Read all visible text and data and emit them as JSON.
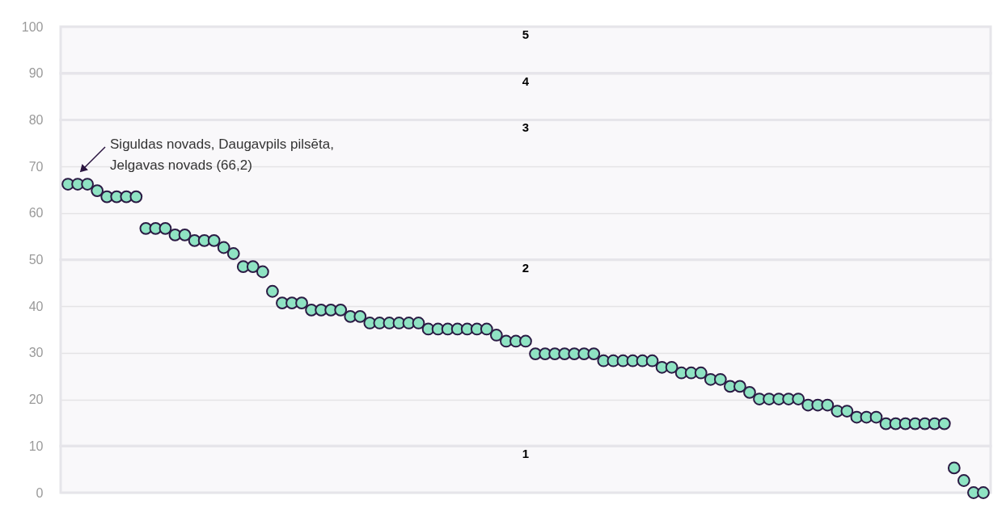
{
  "chart_data": {
    "type": "scatter",
    "categories": [
      null,
      null,
      null,
      null,
      null,
      null,
      null,
      null,
      null,
      null,
      null,
      null,
      null,
      null,
      null,
      null,
      null,
      null,
      null,
      null,
      null,
      null,
      null,
      null,
      null,
      null,
      null,
      null,
      null,
      null,
      null,
      null,
      null,
      null,
      null,
      null,
      null,
      null,
      null,
      null,
      null,
      null,
      null,
      null,
      null,
      null,
      null,
      null,
      null,
      null,
      null,
      null,
      null,
      null,
      null,
      null,
      null,
      null,
      null,
      null,
      null,
      null,
      null,
      null,
      null,
      null,
      null,
      null,
      null,
      null,
      null,
      null,
      null,
      null,
      null,
      null,
      null,
      null,
      null,
      null,
      null,
      null,
      null,
      null,
      null,
      null,
      null,
      null,
      null,
      null,
      null,
      null,
      null,
      null,
      null
    ],
    "series": [
      {
        "color": "#8fe3c3",
        "values": [
          66.2,
          66.2,
          66.2,
          64.8,
          63.5,
          63.5,
          63.5,
          63.5,
          56.7,
          56.7,
          56.7,
          55.3,
          55.3,
          54.1,
          54.1,
          54.1,
          52.6,
          51.3,
          48.5,
          48.5,
          47.4,
          43.2,
          40.7,
          40.7,
          40.7,
          39.2,
          39.2,
          39.2,
          39.2,
          37.8,
          37.8,
          36.4,
          36.4,
          36.4,
          36.4,
          36.4,
          36.4,
          35.1,
          35.1,
          35.1,
          35.1,
          35.1,
          35.1,
          35.1,
          33.8,
          32.5,
          32.5,
          32.5,
          29.8,
          29.8,
          29.8,
          29.8,
          29.8,
          29.8,
          29.8,
          28.3,
          28.3,
          28.3,
          28.3,
          28.3,
          28.3,
          26.9,
          26.9,
          25.7,
          25.7,
          25.7,
          24.3,
          24.3,
          22.8,
          22.8,
          21.5,
          20.1,
          20.1,
          20.1,
          20.1,
          20.1,
          18.8,
          18.8,
          18.8,
          17.5,
          17.5,
          16.2,
          16.2,
          16.2,
          14.8,
          14.8,
          14.8,
          14.8,
          14.8,
          14.8,
          14.8,
          5.3,
          2.6,
          0,
          0
        ]
      }
    ],
    "marker": "circle",
    "ylim": [
      0,
      100
    ],
    "yticks": [
      0,
      10,
      20,
      30,
      40,
      50,
      60,
      70,
      80,
      90,
      100
    ],
    "grid": "y",
    "tick_labels": "y",
    "bands": [
      {
        "axis": "y",
        "from": 0,
        "to": 10,
        "label": "1",
        "color": "#e6e5ea"
      },
      {
        "axis": "y",
        "from": 10,
        "to": 50,
        "label": "2",
        "color": "#e6e5ea"
      },
      {
        "axis": "y",
        "from": 50,
        "to": 80,
        "label": "3",
        "color": "#e6e5ea"
      },
      {
        "axis": "y",
        "from": 80,
        "to": 90,
        "label": "4",
        "color": "#e6e5ea"
      },
      {
        "axis": "y",
        "from": 90,
        "to": 100,
        "label": "5",
        "color": "#e6e5ea"
      }
    ],
    "annotations": [
      "Siguldas novads, Daugavpils pilsēta,\nJelgavas novads (66,2)"
    ]
  }
}
